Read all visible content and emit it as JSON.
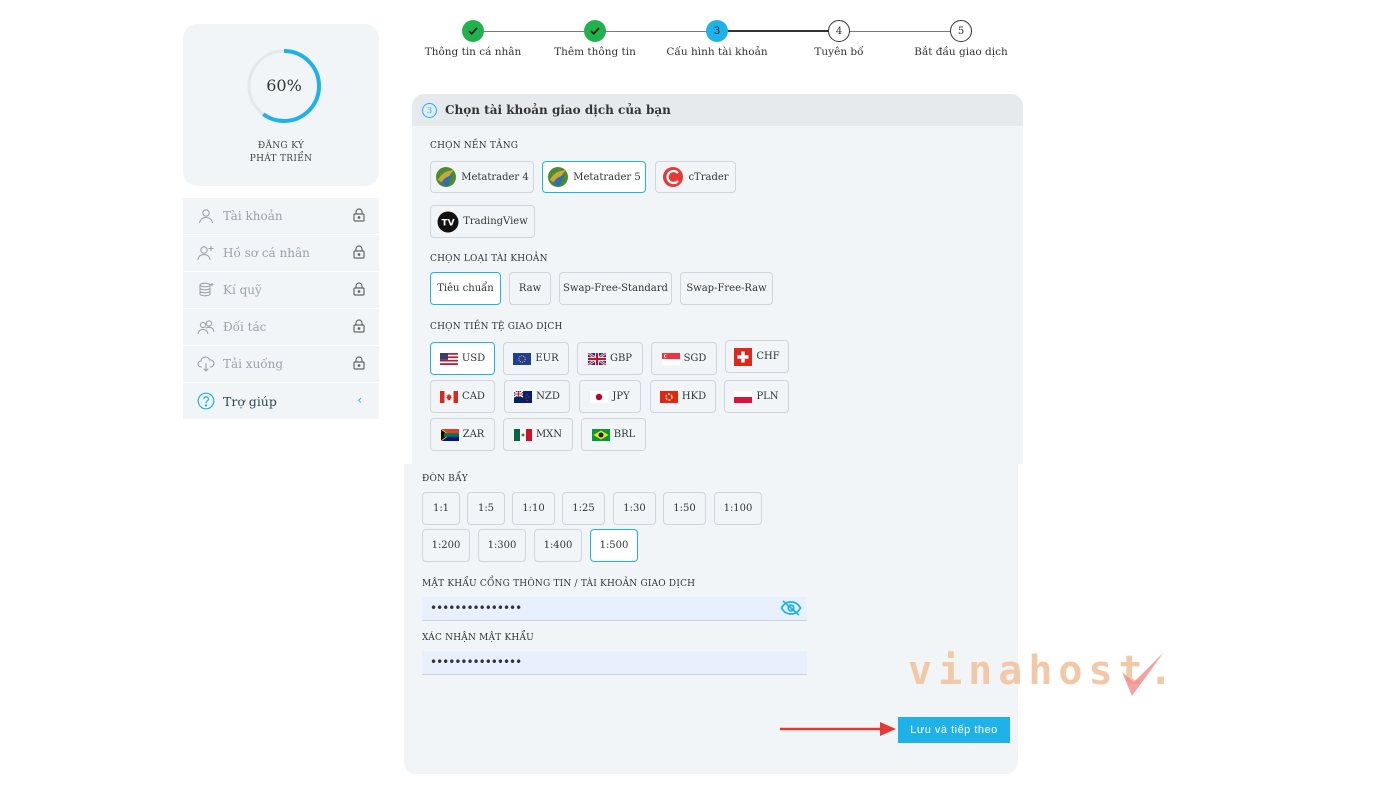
{
  "progress": {
    "percent_label": "60%",
    "percent": 60,
    "line1": "ĐĂNG KÝ",
    "line2": "PHÁT TRIỂN"
  },
  "sidebar": {
    "items": [
      {
        "label": "Tài khoản",
        "icon": "user-icon",
        "locked": true
      },
      {
        "label": "Hồ sơ cá nhân",
        "icon": "user-plus-icon",
        "locked": true
      },
      {
        "label": "Kí quỹ",
        "icon": "coins-icon",
        "locked": true
      },
      {
        "label": "Đối tác",
        "icon": "users-icon",
        "locked": true
      },
      {
        "label": "Tải xuống",
        "icon": "cloud-download-icon",
        "locked": true
      },
      {
        "label": "Trợ giúp",
        "icon": "help-circle-icon",
        "chevron": "‹"
      }
    ]
  },
  "stepper": {
    "steps": [
      {
        "label": "Thông tin cá nhân",
        "status": "done",
        "num": ""
      },
      {
        "label": "Thêm thông tin",
        "status": "done",
        "num": ""
      },
      {
        "label": "Cấu hình tài khoản",
        "status": "current",
        "num": "3"
      },
      {
        "label": "Tuyên bố",
        "status": "todo",
        "num": "4"
      },
      {
        "label": "Bắt đầu giao dịch",
        "status": "todo",
        "num": "5"
      }
    ]
  },
  "panel": {
    "step_num": "3",
    "title": "Chọn tài khoản giao dịch của bạn",
    "platform_label": "CHỌN NỀN TẢNG",
    "platforms": [
      "Metatrader 4",
      "Metatrader 5",
      "cTrader",
      "TradingView"
    ],
    "platform_selected": "Metatrader 5",
    "account_type_label": "CHỌN LOẠI TÀI KHOẢN",
    "account_types": [
      "Tiêu chuẩn",
      "Raw",
      "Swap-Free-Standard",
      "Swap-Free-Raw"
    ],
    "account_type_selected": "Tiêu chuẩn",
    "currency_label": "CHỌN TIỀN TỆ GIAO DỊCH",
    "currencies": [
      "USD",
      "EUR",
      "GBP",
      "SGD",
      "CHF",
      "CAD",
      "NZD",
      "JPY",
      "HKD",
      "PLN",
      "ZAR",
      "MXN",
      "BRL"
    ],
    "currency_selected": "USD",
    "leverage_label": "ĐÒN BẨY",
    "leverages": [
      "1:1",
      "1:5",
      "1:10",
      "1:25",
      "1:30",
      "1:50",
      "1:100",
      "1:200",
      "1:300",
      "1:400",
      "1:500"
    ],
    "leverage_selected": "1:500",
    "password_label": "MẬT KHẨU CỔNG THÔNG TIN / TÀI KHOẢN GIAO DỊCH",
    "password_value": "•••••••••••••••",
    "confirm_label": "XÁC NHẬN MẬT KHẨU",
    "confirm_value": "•••••••••••••••",
    "save_label": "Lưu và tiếp theo"
  },
  "watermark": {
    "text": "vinahost."
  },
  "colors": {
    "accent": "#1fb2e8",
    "done": "#21b24e",
    "arrow": "#e53935"
  }
}
